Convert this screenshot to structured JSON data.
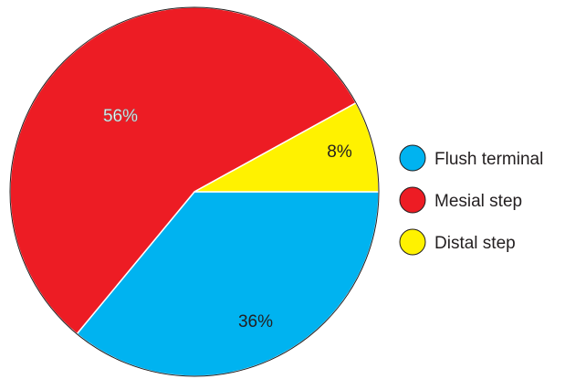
{
  "chart_data": {
    "type": "pie",
    "title": "",
    "slices": [
      {
        "label": "Flush terminal",
        "value": 36,
        "display": "36%",
        "color": "#00b3f0"
      },
      {
        "label": "Mesial step",
        "value": 56,
        "display": "56%",
        "color": "#ed1c24"
      },
      {
        "label": "Distal step",
        "value": 8,
        "display": "8%",
        "color": "#fff200"
      }
    ],
    "start_angle_deg": 0,
    "direction": "clockwise",
    "legend_position": "right",
    "slice_label_colors": {
      "Flush terminal": "#231f20",
      "Mesial step": "#ffffff",
      "Distal step": "#231f20"
    }
  }
}
